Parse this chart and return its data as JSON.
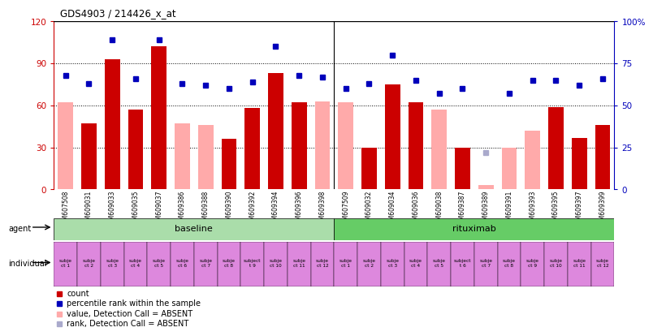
{
  "title": "GDS4903 / 214426_x_at",
  "samples": [
    "GSM607508",
    "GSM609031",
    "GSM609033",
    "GSM609035",
    "GSM609037",
    "GSM609386",
    "GSM609388",
    "GSM609390",
    "GSM609392",
    "GSM609394",
    "GSM609396",
    "GSM609398",
    "GSM607509",
    "GSM609032",
    "GSM609034",
    "GSM609036",
    "GSM609038",
    "GSM609387",
    "GSM609389",
    "GSM609391",
    "GSM609393",
    "GSM609395",
    "GSM609397",
    "GSM609399"
  ],
  "count_values": [
    null,
    47,
    93,
    57,
    102,
    null,
    null,
    36,
    58,
    83,
    62,
    null,
    null,
    30,
    75,
    62,
    null,
    30,
    null,
    null,
    null,
    59,
    37,
    46
  ],
  "count_absent": [
    true,
    false,
    false,
    false,
    false,
    true,
    true,
    false,
    false,
    false,
    false,
    true,
    true,
    false,
    false,
    false,
    true,
    false,
    true,
    true,
    true,
    false,
    false,
    false
  ],
  "count_absent_values": [
    62,
    null,
    null,
    null,
    null,
    47,
    46,
    null,
    null,
    null,
    null,
    63,
    62,
    null,
    null,
    null,
    57,
    null,
    3,
    30,
    42,
    null,
    null,
    null
  ],
  "rank_values": [
    68,
    63,
    89,
    66,
    89,
    63,
    62,
    60,
    64,
    85,
    68,
    67,
    60,
    63,
    80,
    65,
    57,
    60,
    22,
    57,
    65,
    65,
    62,
    66
  ],
  "rank_absent": [
    false,
    false,
    false,
    false,
    false,
    false,
    false,
    false,
    false,
    false,
    false,
    false,
    false,
    false,
    false,
    false,
    false,
    false,
    true,
    false,
    false,
    false,
    false,
    false
  ],
  "agent_labels": [
    "baseline",
    "rituximab"
  ],
  "individual_labels": [
    "subje\nct 1",
    "subje\nct 2",
    "subje\nct 3",
    "subje\nct 4",
    "subje\nct 5",
    "subje\nct 6",
    "subje\nct 7",
    "subje\nct 8",
    "subject\nt 9",
    "subje\nct 10",
    "subje\nct 11",
    "subje\nct 12",
    "subje\nct 1",
    "subje\nct 2",
    "subje\nct 3",
    "subje\nct 4",
    "subje\nct 5",
    "subject\nt 6",
    "subje\nct 7",
    "subje\nct 8",
    "subje\nct 9",
    "subje\nct 10",
    "subje\nct 11",
    "subje\nct 12"
  ],
  "ylim_left": [
    0,
    120
  ],
  "ylim_right": [
    0,
    100
  ],
  "yticks_left": [
    0,
    30,
    60,
    90,
    120
  ],
  "yticks_right": [
    0,
    25,
    50,
    75,
    100
  ],
  "ytick_labels_right": [
    "0",
    "25",
    "50",
    "75",
    "100%"
  ],
  "color_count": "#cc0000",
  "color_count_absent": "#ffaaaa",
  "color_rank": "#0000bb",
  "color_rank_absent": "#aaaacc",
  "color_baseline": "#aaddaa",
  "color_rituximab": "#66cc66",
  "color_individual": "#dd88dd",
  "background_color": "#ffffff"
}
